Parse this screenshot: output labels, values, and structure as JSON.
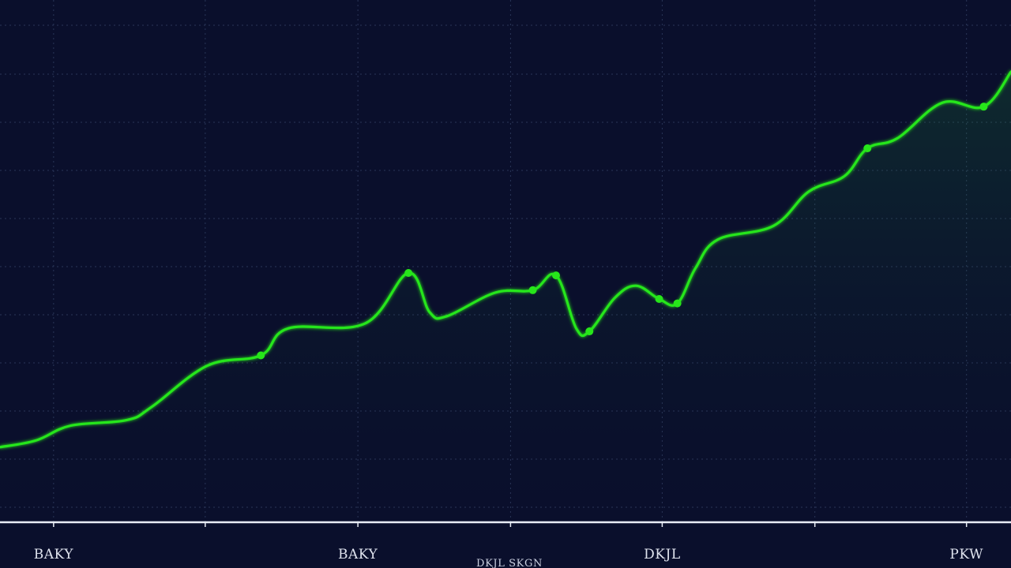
{
  "chart_data": {
    "type": "area",
    "title": "",
    "xlabel": "DKJL SKGN",
    "ylabel": "",
    "grid": true,
    "legend": "none",
    "line_color": "#27e61a",
    "fill_color": "#27e61a",
    "background_color": "#0a0f2c",
    "grid_color": "#2a3558",
    "axis_color": "#e8ecf5",
    "xlim": [
      0,
      100
    ],
    "ylim": [
      0,
      100
    ],
    "x_tick_values": [
      5.3,
      20.3,
      35.4,
      50.5,
      65.5,
      80.6,
      95.6
    ],
    "x_tick_labels": [
      {
        "x": 5.3,
        "label": "BAKY"
      },
      {
        "x": 35.4,
        "label": "BAKY"
      },
      {
        "x": 65.5,
        "label": "DKJL"
      },
      {
        "x": 95.6,
        "label": "PKW"
      }
    ],
    "series": [
      {
        "values": [
          {
            "x": 0,
            "y": 15.3
          },
          {
            "x": 3.6,
            "y": 16.7
          },
          {
            "x": 7.0,
            "y": 19.7
          },
          {
            "x": 12.5,
            "y": 20.8
          },
          {
            "x": 15.0,
            "y": 23.5
          },
          {
            "x": 20.5,
            "y": 31.9
          },
          {
            "x": 25.8,
            "y": 34.0
          },
          {
            "x": 28.5,
            "y": 39.5
          },
          {
            "x": 36.1,
            "y": 40.5
          },
          {
            "x": 40.4,
            "y": 50.8
          },
          {
            "x": 42.5,
            "y": 42.8
          },
          {
            "x": 44.2,
            "y": 42.0
          },
          {
            "x": 49.0,
            "y": 46.8
          },
          {
            "x": 52.7,
            "y": 47.3
          },
          {
            "x": 55.0,
            "y": 50.3
          },
          {
            "x": 57.0,
            "y": 39.5
          },
          {
            "x": 58.3,
            "y": 38.9
          },
          {
            "x": 60.8,
            "y": 45.7
          },
          {
            "x": 62.9,
            "y": 48.2
          },
          {
            "x": 65.2,
            "y": 45.5
          },
          {
            "x": 67.0,
            "y": 44.6
          },
          {
            "x": 68.8,
            "y": 51.8
          },
          {
            "x": 71.0,
            "y": 57.6
          },
          {
            "x": 76.5,
            "y": 60.4
          },
          {
            "x": 80.0,
            "y": 67.4
          },
          {
            "x": 83.5,
            "y": 70.5
          },
          {
            "x": 85.8,
            "y": 76.2
          },
          {
            "x": 88.8,
            "y": 78.3
          },
          {
            "x": 93.2,
            "y": 85.5
          },
          {
            "x": 97.3,
            "y": 84.7
          },
          {
            "x": 100,
            "y": 91.8
          }
        ],
        "markers": [
          {
            "x": 25.8,
            "y": 34.0
          },
          {
            "x": 40.4,
            "y": 50.8
          },
          {
            "x": 52.7,
            "y": 47.3
          },
          {
            "x": 55.0,
            "y": 50.3
          },
          {
            "x": 58.3,
            "y": 38.9
          },
          {
            "x": 65.2,
            "y": 45.5
          },
          {
            "x": 67.0,
            "y": 44.6
          },
          {
            "x": 85.8,
            "y": 76.2
          },
          {
            "x": 97.3,
            "y": 84.7
          }
        ]
      }
    ]
  }
}
